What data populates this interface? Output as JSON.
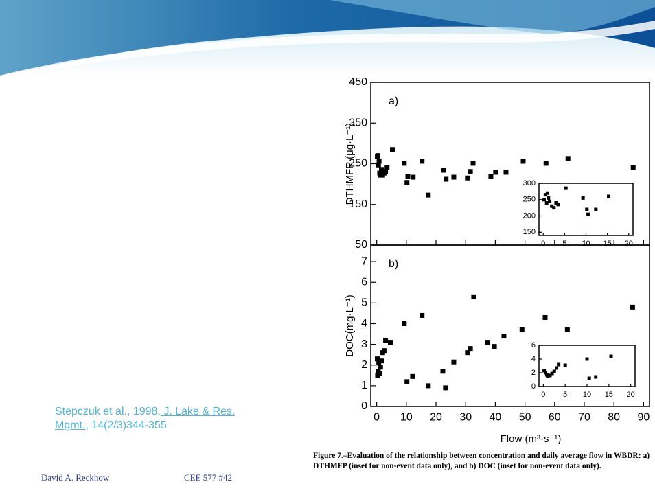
{
  "chart_data": [
    {
      "type": "scatter",
      "panel_label": "a)",
      "ylabel": "DTHMFP (μg·L⁻¹)",
      "color": "#000000",
      "xlim": [
        -2,
        92
      ],
      "ylim": [
        50,
        450
      ],
      "yticks": [
        50,
        150,
        250,
        350,
        450
      ],
      "x": [
        0.2,
        0.4,
        0.6,
        0.8,
        1.0,
        1.3,
        1.6,
        2.0,
        2.5,
        3.0,
        3.5,
        5.3,
        9.3,
        10.2,
        10.5,
        12.3,
        15.3,
        17.4,
        22.5,
        23.4,
        26,
        30.6,
        31.6,
        32.5,
        38.5,
        40.1,
        43.6,
        49.4,
        57.1,
        64.5,
        86.5
      ],
      "y": [
        268,
        270,
        247,
        256,
        227,
        222,
        236,
        222,
        227,
        231,
        240,
        285,
        251,
        204,
        219,
        217,
        256,
        173,
        234,
        212,
        217,
        215,
        231,
        251,
        219,
        229,
        229,
        256,
        251,
        263,
        241
      ]
    },
    {
      "type": "scatter",
      "panel_label": "b)",
      "ylabel": "DOC(mg·L⁻¹)",
      "xlabel": "Flow (m³·s⁻¹)",
      "color": "#000000",
      "xlim": [
        -2,
        92
      ],
      "ylim": [
        0,
        7.8
      ],
      "xticks": [
        0,
        10,
        20,
        30,
        40,
        50,
        60,
        70,
        80,
        90
      ],
      "yticks": [
        0,
        1,
        2,
        3,
        4,
        5,
        6,
        7
      ],
      "x": [
        0.2,
        0.3,
        0.5,
        0.7,
        0.9,
        1.3,
        1.8,
        2.0,
        2.5,
        3.0,
        4.6,
        9.3,
        10.2,
        12.1,
        15.3,
        17.4,
        22.3,
        23.2,
        26,
        30.6,
        31.6,
        32.7,
        37.4,
        39.7,
        42.9,
        49,
        56.8,
        64.3,
        86.3
      ],
      "y": [
        2.3,
        1.5,
        1.7,
        2.1,
        1.6,
        1.9,
        2.2,
        2.6,
        2.7,
        3.2,
        3.1,
        4.0,
        1.2,
        1.45,
        4.4,
        1.0,
        1.7,
        0.9,
        2.15,
        2.6,
        2.8,
        5.3,
        3.1,
        2.9,
        3.4,
        3.7,
        4.3,
        3.7,
        4.8
      ]
    },
    {
      "type": "scatter",
      "color": "#000000",
      "xlim": [
        -1,
        21
      ],
      "ylim": [
        140,
        300
      ],
      "xticks": [
        0,
        5,
        10,
        15,
        20
      ],
      "yticks": [
        150,
        200,
        250,
        300
      ],
      "x": [
        0.2,
        0.5,
        0.8,
        1.0,
        1.2,
        1.5,
        2.0,
        2.5,
        3.0,
        3.5,
        5.3,
        9.3,
        10.2,
        10.5,
        12.3,
        15.3
      ],
      "y": [
        250,
        265,
        240,
        270,
        255,
        245,
        230,
        225,
        240,
        235,
        285,
        255,
        220,
        205,
        220,
        260
      ]
    },
    {
      "type": "scatter",
      "color": "#000000",
      "xlim": [
        -1,
        21
      ],
      "ylim": [
        0,
        6
      ],
      "xticks": [
        0,
        5,
        10,
        15,
        20
      ],
      "yticks": [
        0,
        2,
        4,
        6
      ],
      "x": [
        0.2,
        0.5,
        0.8,
        1.0,
        1.5,
        2.0,
        2.5,
        3.0,
        3.5,
        5.0,
        10.0,
        10.5,
        12.0,
        15.5
      ],
      "y": [
        2.3,
        2.0,
        1.7,
        1.5,
        1.6,
        1.9,
        2.2,
        2.7,
        3.2,
        3.1,
        4.0,
        1.2,
        1.4,
        4.4
      ]
    }
  ],
  "citation": {
    "before": "Stepczuk et al., 1998,",
    "link": " J. Lake & Res. Mgmt.",
    "after": ", 14(2/3)344-355"
  },
  "footer": {
    "author": "David A. Reckhow",
    "course": "CEE 577  #42"
  },
  "caption": "Figure 7.–Evaluation of the relationship between concentration and daily average flow in WBDR: a) DTHMFP (inset for non-event data only), and b) DOC (inset for non-event data only)."
}
